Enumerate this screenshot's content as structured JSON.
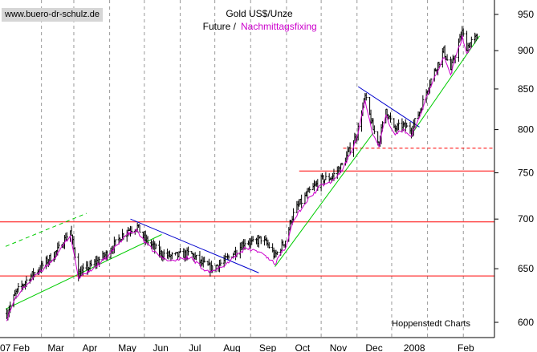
{
  "title_line1": "Gold US$/Unze",
  "title_future": "Future /",
  "title_fixing": "Nachmittagsfixing",
  "watermark": "www.buero-dr-schulz.de",
  "credit": "Hoppenstedt Charts",
  "colors": {
    "background": "#ffffff",
    "ohlc": "#000000",
    "fixing_line": "#cc00cc",
    "support_lines": "#ff0000",
    "trend_up": "#00cc00",
    "trend_down": "#0000cc",
    "grid": "#999999"
  },
  "chart_data": {
    "type": "line",
    "y_scale": "log",
    "ylim": [
      585,
      975
    ],
    "y_ticks": [
      600,
      650,
      700,
      750,
      800,
      850,
      900,
      950
    ],
    "x_labels": [
      "07",
      "Feb",
      "Mar",
      "Apr",
      "May",
      "Jun",
      "Jul",
      "Aug",
      "Sep",
      "Oct",
      "Nov",
      "Dec",
      "2008",
      "Feb"
    ],
    "series": [
      {
        "name": "Future",
        "style": "ohlc-bars",
        "anchors": [
          [
            "2007-01-02",
            608
          ],
          [
            "2007-01-10",
            627
          ],
          [
            "2007-01-20",
            640
          ],
          [
            "2007-02-01",
            652
          ],
          [
            "2007-02-15",
            668
          ],
          [
            "2007-02-26",
            688
          ],
          [
            "2007-03-05",
            645
          ],
          [
            "2007-03-15",
            652
          ],
          [
            "2007-03-30",
            665
          ],
          [
            "2007-04-15",
            688
          ],
          [
            "2007-04-25",
            692
          ],
          [
            "2007-05-01",
            680
          ],
          [
            "2007-05-15",
            665
          ],
          [
            "2007-05-25",
            662
          ],
          [
            "2007-06-10",
            665
          ],
          [
            "2007-06-20",
            655
          ],
          [
            "2007-06-28",
            650
          ],
          [
            "2007-07-10",
            658
          ],
          [
            "2007-07-20",
            668
          ],
          [
            "2007-07-28",
            678
          ],
          [
            "2007-08-03",
            675
          ],
          [
            "2007-08-10",
            680
          ],
          [
            "2007-08-17",
            672
          ],
          [
            "2007-08-22",
            662
          ],
          [
            "2007-09-01",
            680
          ],
          [
            "2007-09-05",
            700
          ],
          [
            "2007-09-10",
            712
          ],
          [
            "2007-09-20",
            728
          ],
          [
            "2007-10-01",
            742
          ],
          [
            "2007-10-10",
            745
          ],
          [
            "2007-10-20",
            760
          ],
          [
            "2007-11-01",
            795
          ],
          [
            "2007-11-08",
            840
          ],
          [
            "2007-11-15",
            800
          ],
          [
            "2007-11-20",
            785
          ],
          [
            "2007-11-26",
            825
          ],
          [
            "2007-12-03",
            800
          ],
          [
            "2007-12-10",
            805
          ],
          [
            "2007-12-18",
            800
          ],
          [
            "2007-12-26",
            825
          ],
          [
            "2008-01-02",
            855
          ],
          [
            "2008-01-15",
            900
          ],
          [
            "2008-01-21",
            875
          ],
          [
            "2008-01-31",
            925
          ],
          [
            "2008-02-04",
            905
          ],
          [
            "2008-02-08",
            912
          ],
          [
            "2008-02-13",
            918
          ]
        ]
      },
      {
        "name": "Nachmittagsfixing",
        "style": "line",
        "anchors": [
          [
            "2007-01-02",
            603
          ],
          [
            "2007-01-10",
            623
          ],
          [
            "2007-01-20",
            636
          ],
          [
            "2007-02-01",
            648
          ],
          [
            "2007-02-15",
            664
          ],
          [
            "2007-02-26",
            684
          ],
          [
            "2007-03-05",
            641
          ],
          [
            "2007-03-15",
            648
          ],
          [
            "2007-03-30",
            661
          ],
          [
            "2007-04-15",
            684
          ],
          [
            "2007-04-25",
            688
          ],
          [
            "2007-05-01",
            676
          ],
          [
            "2007-05-15",
            661
          ],
          [
            "2007-05-25",
            658
          ],
          [
            "2007-06-10",
            661
          ],
          [
            "2007-06-20",
            651
          ],
          [
            "2007-06-28",
            646
          ],
          [
            "2007-07-10",
            654
          ],
          [
            "2007-07-20",
            664
          ],
          [
            "2007-07-28",
            670
          ],
          [
            "2007-08-03",
            668
          ],
          [
            "2007-08-10",
            666
          ],
          [
            "2007-08-17",
            660
          ],
          [
            "2007-08-22",
            655
          ],
          [
            "2007-09-01",
            673
          ],
          [
            "2007-09-05",
            693
          ],
          [
            "2007-09-10",
            705
          ],
          [
            "2007-09-20",
            721
          ],
          [
            "2007-10-01",
            736
          ],
          [
            "2007-10-10",
            740
          ],
          [
            "2007-10-20",
            754
          ],
          [
            "2007-11-01",
            790
          ],
          [
            "2007-11-08",
            834
          ],
          [
            "2007-11-15",
            793
          ],
          [
            "2007-11-20",
            779
          ],
          [
            "2007-11-26",
            817
          ],
          [
            "2007-12-03",
            794
          ],
          [
            "2007-12-10",
            799
          ],
          [
            "2007-12-18",
            794
          ],
          [
            "2007-12-26",
            818
          ],
          [
            "2008-01-02",
            848
          ],
          [
            "2008-01-15",
            892
          ],
          [
            "2008-01-21",
            868
          ],
          [
            "2008-01-31",
            918
          ],
          [
            "2008-02-04",
            898
          ],
          [
            "2008-02-08",
            905
          ]
        ]
      }
    ],
    "horizontal_lines": [
      {
        "value": 643,
        "color": "red",
        "style": "solid"
      },
      {
        "value": 697,
        "color": "red",
        "style": "solid"
      },
      {
        "value": 752,
        "color": "red",
        "style": "solid"
      },
      {
        "value": 778,
        "color": "red",
        "style": "dashed"
      }
    ],
    "trend_lines": [
      {
        "color": "green",
        "style": "solid",
        "from": [
          "2007-01-01",
          612
        ],
        "to": [
          "2007-05-16",
          684
        ]
      },
      {
        "color": "green",
        "style": "dashed",
        "from": [
          "2007-01-01",
          672
        ],
        "to": [
          "2007-03-12",
          706
        ]
      },
      {
        "color": "green",
        "style": "solid",
        "from": [
          "2007-08-22",
          652
        ],
        "to": [
          "2007-11-15",
          796
        ]
      },
      {
        "color": "green",
        "style": "solid",
        "from": [
          "2007-12-20",
          798
        ],
        "to": [
          "2008-02-15",
          920
        ]
      },
      {
        "color": "blue",
        "style": "solid",
        "from": [
          "2007-04-19",
          700
        ],
        "to": [
          "2007-08-08",
          646
        ]
      },
      {
        "color": "blue",
        "style": "solid",
        "from": [
          "2007-11-02",
          853
        ],
        "to": [
          "2007-12-25",
          803
        ]
      }
    ],
    "grid": "vertical dashed, monthly",
    "legend": "top-center"
  }
}
